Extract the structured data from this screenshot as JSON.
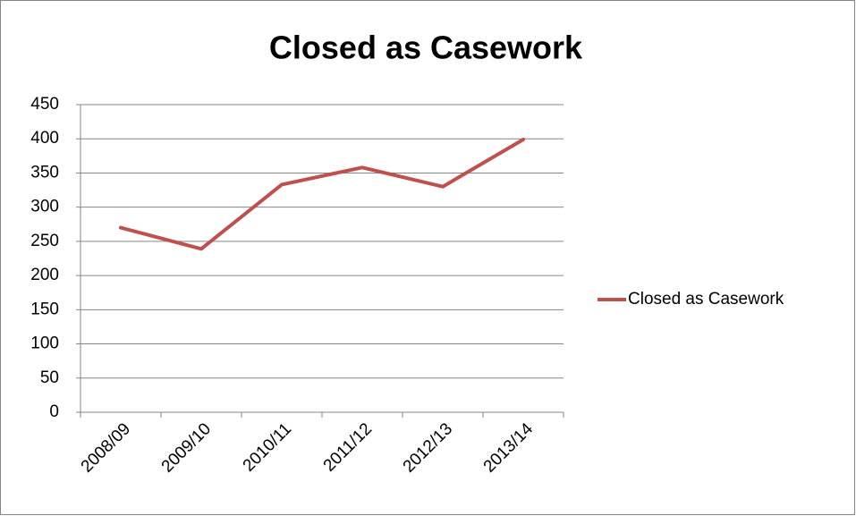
{
  "chart_data": {
    "type": "line",
    "title": "Closed as Casework",
    "categories": [
      "2008/09",
      "2009/10",
      "2010/11",
      "2011/12",
      "2012/13",
      "2013/14"
    ],
    "series": [
      {
        "name": "Closed as Casework",
        "color": "#c0504d",
        "values": [
          270,
          239,
          333,
          358,
          330,
          399
        ]
      }
    ],
    "ylim": [
      0,
      450
    ],
    "yticks": [
      0,
      50,
      100,
      150,
      200,
      250,
      300,
      350,
      400,
      450
    ],
    "grid": true,
    "legend": "right"
  }
}
